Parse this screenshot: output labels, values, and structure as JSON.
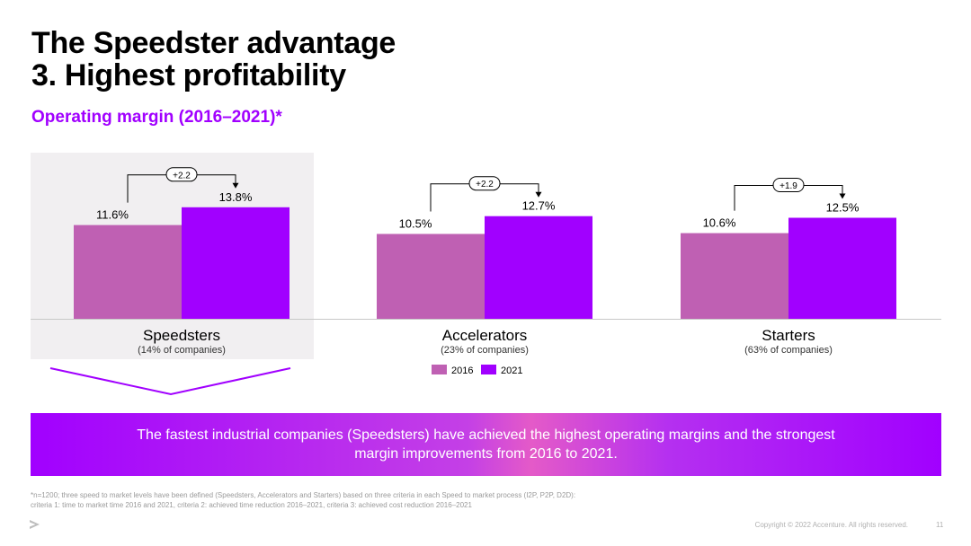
{
  "title_line1": "The Speedster advantage",
  "title_line2": "3. Highest profitability",
  "subtitle": "Operating margin (2016–2021)*",
  "chart_data": {
    "type": "bar",
    "categories": [
      "Speedsters",
      "Accelerators",
      "Starters"
    ],
    "category_notes": [
      "(14% of companies)",
      "(23% of companies)",
      "(63% of companies)"
    ],
    "series": [
      {
        "name": "2016",
        "values": [
          11.6,
          10.5,
          10.6
        ],
        "labels": [
          "11.6%",
          "10.5%",
          "10.6%"
        ],
        "color": "#bf60b3"
      },
      {
        "name": "2021",
        "values": [
          13.8,
          12.7,
          12.5
        ],
        "labels": [
          "13.8%",
          "12.7%",
          "12.5%"
        ],
        "color": "#a100ff"
      }
    ],
    "differences": [
      "+2.2",
      "+2.2",
      "+1.9"
    ],
    "highlighted_category": "Speedsters",
    "legend_position": "bottom-center",
    "grid": false
  },
  "callout": "The fastest industrial companies (Speedsters) have achieved the highest operating margins and the strongest margin improvements from 2016 to 2021.",
  "footnote_line1": "*n=1200; three speed to market levels have been defined (Speedsters, Accelerators and Starters) based on three criteria in each Speed to market process (I2P, P2P, D2D):",
  "footnote_line2": "criteria 1: time to market time 2016 and 2021, criteria 2: achieved time reduction 2016–2021, criteria 3: achieved cost reduction 2016–2021",
  "copyright": "Copyright © 2022 Accenture. All rights reserved.",
  "page_number": "11",
  "colors": {
    "accent": "#a100ff",
    "bar_2016": "#bf60b3",
    "bar_2021": "#a100ff",
    "highlight_bg": "#f1eff1"
  }
}
